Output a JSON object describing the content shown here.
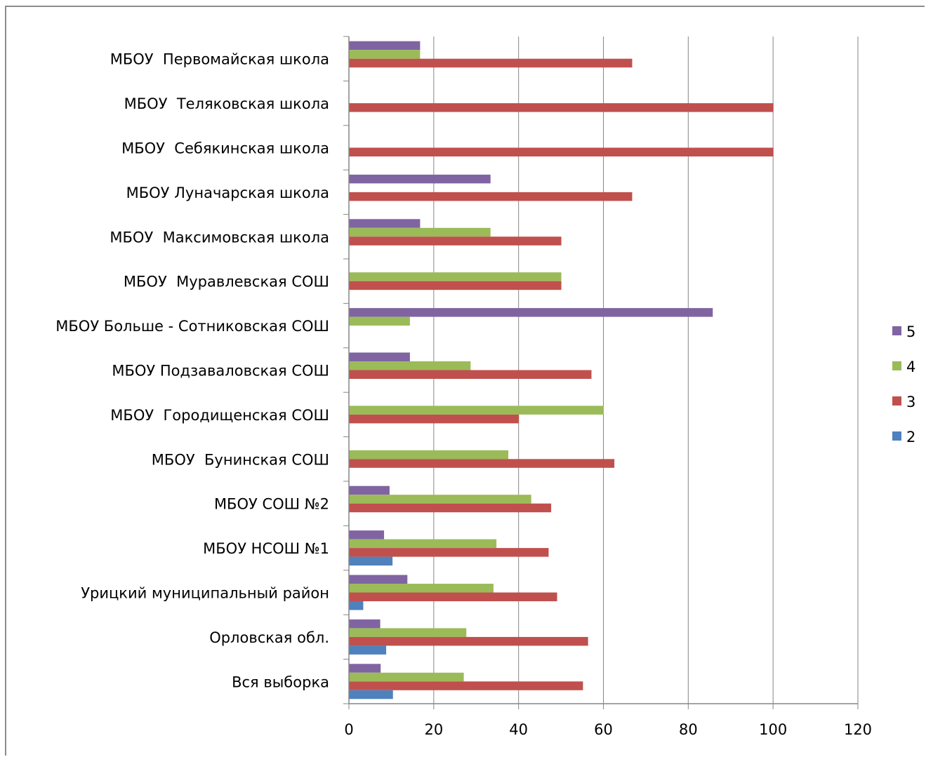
{
  "chart_data": {
    "type": "bar",
    "orientation": "horizontal",
    "categories": [
      "МБОУ  Первомайская школа",
      "МБОУ  Теляковская школа",
      "МБОУ  Себякинская школа",
      "МБОУ Луначарская школа",
      "МБОУ  Максимовская школа",
      "МБОУ  Муравлевская СОШ",
      "МБОУ Больше - Сотниковская СОШ",
      "МБОУ Подзаваловская СОШ",
      "МБОУ  Городищенская СОШ",
      "МБОУ  Бунинская СОШ",
      "МБОУ СОШ №2",
      "МБОУ НСОШ №1",
      "Урицкий муниципальный район",
      "Орловская обл.",
      "Вся выборка"
    ],
    "series": [
      {
        "name": "5",
        "color": "#8064a2",
        "values": [
          16.7,
          0,
          0,
          33.3,
          16.7,
          0,
          85.7,
          14.3,
          0,
          0,
          9.5,
          8.2,
          13.7,
          7.3,
          7.4
        ]
      },
      {
        "name": "4",
        "color": "#9bbb59",
        "values": [
          16.7,
          0,
          0,
          0,
          33.3,
          50,
          14.3,
          28.6,
          60,
          37.5,
          42.9,
          34.7,
          34,
          27.6,
          27
        ]
      },
      {
        "name": "3",
        "color": "#c0504d",
        "values": [
          66.7,
          100,
          100,
          66.7,
          50,
          50,
          0,
          57.1,
          40,
          62.5,
          47.6,
          47,
          49,
          56.3,
          55.1
        ]
      },
      {
        "name": "2",
        "color": "#4f81bd",
        "values": [
          0,
          0,
          0,
          0,
          0,
          0,
          0,
          0,
          0,
          0,
          0,
          10.2,
          3.3,
          8.7,
          10.3
        ]
      }
    ],
    "xlim": [
      0,
      120
    ],
    "xticks": [
      "0",
      "20",
      "40",
      "60",
      "80",
      "100",
      "120"
    ],
    "grid": true,
    "legend_position": "right",
    "title": "",
    "xlabel": "",
    "ylabel": ""
  }
}
